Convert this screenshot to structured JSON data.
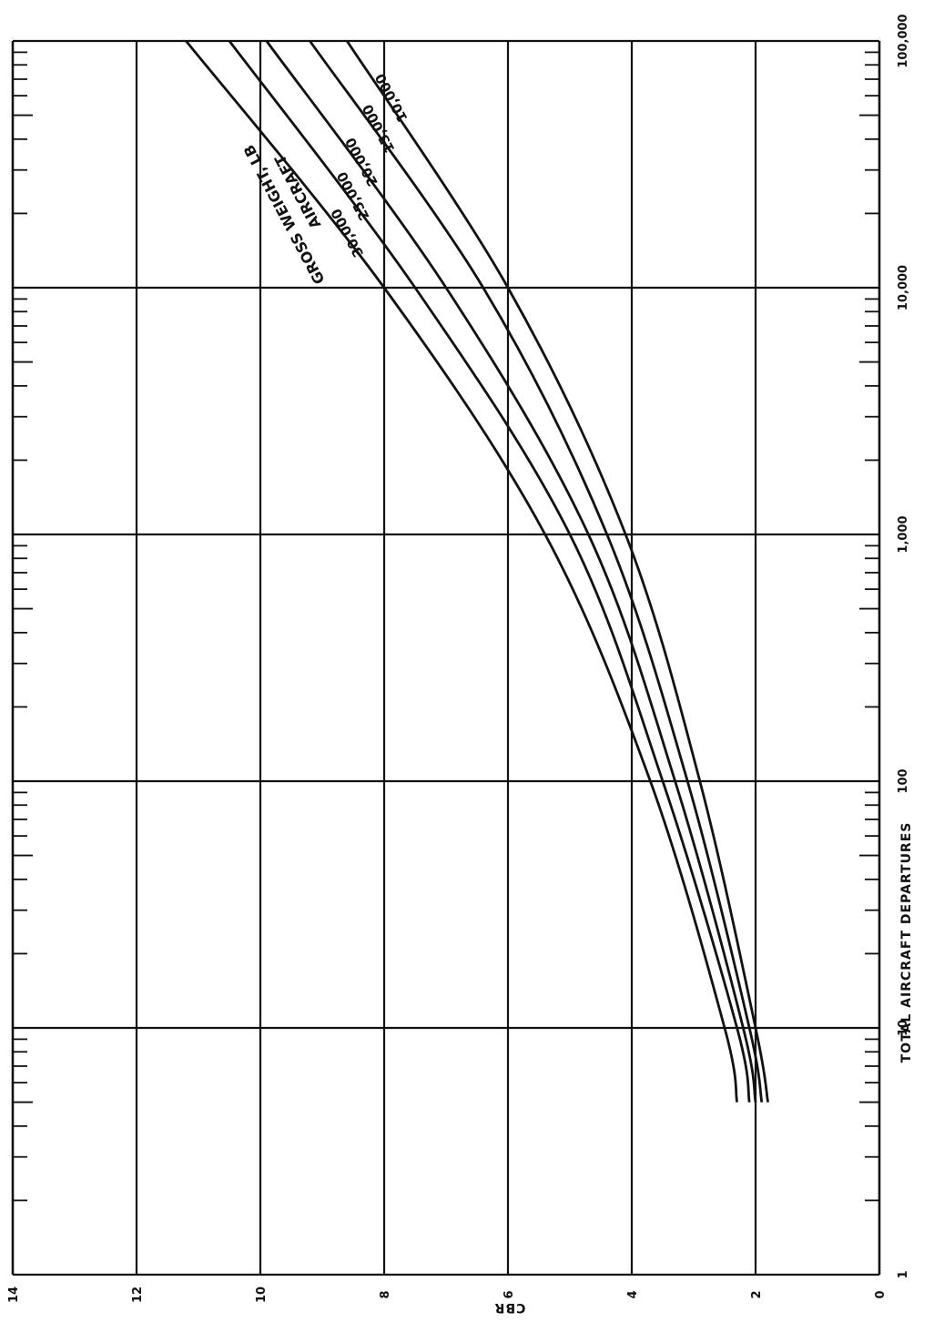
{
  "chart_data": {
    "type": "line",
    "orientation": "rotated-90",
    "title": "",
    "xlabel": "TOTAL AIRCRAFT DEPARTURES",
    "ylabel": "CBR",
    "x_scale": "log",
    "xlim": [
      1,
      100000
    ],
    "ylim": [
      0,
      14
    ],
    "grid": true,
    "x_ticks": [
      1,
      10,
      100,
      1000,
      10000,
      100000
    ],
    "x_tick_labels": [
      "1",
      "10",
      "100",
      "1,000",
      "10,000",
      "100,000"
    ],
    "y_ticks": [
      0,
      2,
      4,
      6,
      8,
      10,
      12,
      14
    ],
    "y_tick_labels": [
      "0",
      "2",
      "4",
      "6",
      "8",
      "10",
      "12",
      "14"
    ],
    "legend_title_lines": [
      "AIRCRAFT",
      "GROSS WEIGHT, LB"
    ],
    "series": [
      {
        "name": "10,000",
        "x": [
          5,
          10,
          100,
          1000,
          10000,
          100000
        ],
        "y": [
          1.8,
          2.0,
          2.9,
          4.1,
          6.0,
          8.6
        ]
      },
      {
        "name": "15,000",
        "x": [
          5,
          10,
          100,
          1000,
          10000,
          100000
        ],
        "y": [
          1.9,
          2.1,
          3.1,
          4.4,
          6.4,
          9.2
        ]
      },
      {
        "name": "20,000",
        "x": [
          5,
          10,
          100,
          1000,
          10000,
          100000
        ],
        "y": [
          2.0,
          2.2,
          3.3,
          4.7,
          7.0,
          9.9
        ]
      },
      {
        "name": "25,000",
        "x": [
          5,
          10,
          100,
          1000,
          10000,
          100000
        ],
        "y": [
          2.1,
          2.3,
          3.5,
          5.0,
          7.5,
          10.5
        ]
      },
      {
        "name": "30,000",
        "x": [
          5,
          10,
          100,
          1000,
          10000,
          100000
        ],
        "y": [
          2.3,
          2.5,
          3.7,
          5.4,
          8.0,
          11.2
        ]
      }
    ]
  }
}
